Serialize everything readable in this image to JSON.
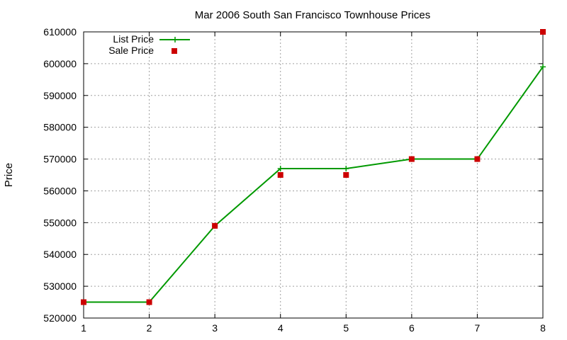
{
  "chart_data": {
    "type": "line",
    "title": "Mar 2006 South San Francisco Townhouse Prices",
    "xlabel": "",
    "ylabel": "Price",
    "xlim": [
      1,
      8
    ],
    "ylim": [
      520000,
      610000
    ],
    "x_ticks": [
      "1",
      "2",
      "3",
      "4",
      "5",
      "6",
      "7",
      "8"
    ],
    "y_ticks": [
      "520000",
      "530000",
      "540000",
      "550000",
      "560000",
      "570000",
      "580000",
      "590000",
      "600000",
      "610000"
    ],
    "grid": true,
    "legend_position": "top-left",
    "x": [
      1,
      2,
      3,
      4,
      5,
      6,
      7,
      8
    ],
    "series": [
      {
        "name": "List Price",
        "style": "line-plus",
        "color": "#009900",
        "values": [
          525000,
          525000,
          549000,
          567000,
          567000,
          570000,
          570000,
          599000
        ]
      },
      {
        "name": "Sale Price",
        "style": "square-points",
        "color": "#cc0000",
        "values": [
          525000,
          525000,
          549000,
          565000,
          565000,
          570000,
          570000,
          610000
        ]
      }
    ]
  }
}
